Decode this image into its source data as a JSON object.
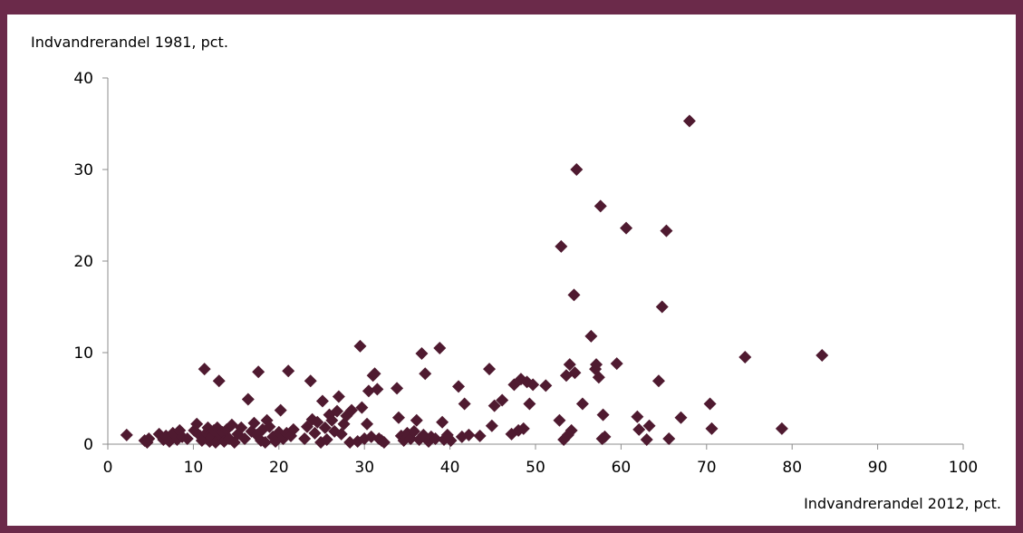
{
  "chart_data": {
    "type": "scatter",
    "title": "",
    "ylabel": "Indvandrerandel 1981, pct.",
    "xlabel": "Indvandrerandel 2012, pct.",
    "xlim": [
      0,
      100
    ],
    "ylim": [
      0,
      40
    ],
    "xticks": [
      0,
      10,
      20,
      30,
      40,
      50,
      60,
      70,
      80,
      90,
      100
    ],
    "yticks": [
      0,
      10,
      20,
      30,
      40
    ],
    "grid": false,
    "marker": "diamond",
    "marker_color": "#4f1a30",
    "points": [
      [
        2.2,
        1.0
      ],
      [
        4.3,
        0.4
      ],
      [
        4.6,
        0.2
      ],
      [
        4.8,
        0.6
      ],
      [
        6.0,
        1.1
      ],
      [
        6.5,
        0.5
      ],
      [
        6.8,
        0.9
      ],
      [
        7.2,
        0.3
      ],
      [
        7.6,
        1.2
      ],
      [
        8.1,
        0.5
      ],
      [
        8.4,
        1.5
      ],
      [
        8.7,
        0.8
      ],
      [
        9.3,
        0.6
      ],
      [
        10.1,
        1.5
      ],
      [
        10.4,
        2.2
      ],
      [
        10.8,
        0.9
      ],
      [
        11.0,
        0.4
      ],
      [
        11.3,
        8.2
      ],
      [
        11.5,
        1.2
      ],
      [
        11.7,
        1.8
      ],
      [
        11.9,
        0.3
      ],
      [
        12.1,
        0.7
      ],
      [
        12.4,
        1.5
      ],
      [
        12.6,
        0.2
      ],
      [
        12.8,
        1.8
      ],
      [
        13.0,
        6.9
      ],
      [
        13.2,
        0.9
      ],
      [
        13.4,
        1.3
      ],
      [
        13.6,
        0.3
      ],
      [
        13.9,
        1.6
      ],
      [
        14.2,
        0.6
      ],
      [
        14.5,
        2.1
      ],
      [
        14.8,
        0.2
      ],
      [
        15.2,
        1.1
      ],
      [
        15.6,
        1.8
      ],
      [
        16.0,
        0.6
      ],
      [
        16.4,
        4.9
      ],
      [
        16.8,
        1.4
      ],
      [
        17.1,
        2.3
      ],
      [
        17.4,
        1.0
      ],
      [
        17.6,
        7.9
      ],
      [
        17.9,
        0.4
      ],
      [
        18.1,
        1.6
      ],
      [
        18.4,
        0.2
      ],
      [
        18.6,
        2.6
      ],
      [
        18.9,
        1.9
      ],
      [
        19.3,
        0.8
      ],
      [
        19.6,
        0.3
      ],
      [
        20.0,
        1.3
      ],
      [
        20.2,
        3.7
      ],
      [
        20.5,
        0.6
      ],
      [
        20.9,
        1.2
      ],
      [
        21.1,
        8.0
      ],
      [
        21.4,
        0.9
      ],
      [
        21.7,
        1.6
      ],
      [
        23.0,
        0.6
      ],
      [
        23.3,
        1.9
      ],
      [
        23.7,
        6.9
      ],
      [
        23.9,
        2.7
      ],
      [
        24.2,
        1.2
      ],
      [
        24.5,
        2.4
      ],
      [
        24.9,
        0.2
      ],
      [
        25.1,
        4.7
      ],
      [
        25.4,
        1.8
      ],
      [
        25.6,
        0.5
      ],
      [
        25.9,
        3.2
      ],
      [
        26.2,
        2.6
      ],
      [
        26.5,
        1.4
      ],
      [
        26.8,
        3.6
      ],
      [
        27.0,
        5.2
      ],
      [
        27.3,
        1.1
      ],
      [
        27.6,
        2.2
      ],
      [
        27.9,
        3.1
      ],
      [
        28.3,
        0.2
      ],
      [
        28.5,
        3.7
      ],
      [
        29.2,
        0.3
      ],
      [
        29.5,
        10.7
      ],
      [
        29.7,
        4.0
      ],
      [
        30.0,
        0.6
      ],
      [
        30.3,
        2.2
      ],
      [
        30.5,
        5.8
      ],
      [
        30.8,
        0.8
      ],
      [
        31.0,
        7.5
      ],
      [
        31.2,
        7.7
      ],
      [
        31.5,
        6.0
      ],
      [
        31.7,
        0.6
      ],
      [
        32.0,
        0.4
      ],
      [
        32.3,
        0.2
      ],
      [
        33.8,
        6.1
      ],
      [
        34.0,
        2.9
      ],
      [
        34.3,
        0.9
      ],
      [
        34.6,
        0.4
      ],
      [
        35.0,
        1.2
      ],
      [
        35.4,
        0.6
      ],
      [
        35.8,
        1.4
      ],
      [
        36.1,
        2.6
      ],
      [
        36.4,
        0.5
      ],
      [
        36.7,
        9.9
      ],
      [
        36.9,
        1.0
      ],
      [
        37.1,
        7.7
      ],
      [
        37.5,
        0.3
      ],
      [
        37.8,
        0.8
      ],
      [
        38.3,
        0.6
      ],
      [
        38.8,
        10.5
      ],
      [
        39.1,
        2.4
      ],
      [
        39.3,
        0.5
      ],
      [
        39.7,
        1.0
      ],
      [
        40.1,
        0.4
      ],
      [
        41.0,
        6.3
      ],
      [
        41.4,
        0.8
      ],
      [
        41.7,
        4.4
      ],
      [
        42.2,
        1.0
      ],
      [
        43.5,
        0.9
      ],
      [
        44.6,
        8.2
      ],
      [
        44.9,
        2.0
      ],
      [
        45.2,
        4.2
      ],
      [
        46.1,
        4.8
      ],
      [
        47.2,
        1.1
      ],
      [
        47.5,
        6.5
      ],
      [
        48.0,
        1.5
      ],
      [
        48.3,
        7.1
      ],
      [
        48.6,
        1.7
      ],
      [
        49.0,
        6.8
      ],
      [
        49.3,
        4.4
      ],
      [
        49.7,
        6.5
      ],
      [
        51.2,
        6.4
      ],
      [
        52.8,
        2.6
      ],
      [
        53.0,
        21.6
      ],
      [
        53.3,
        0.5
      ],
      [
        53.6,
        7.5
      ],
      [
        53.8,
        1.0
      ],
      [
        54.0,
        8.7
      ],
      [
        54.2,
        1.5
      ],
      [
        54.5,
        16.3
      ],
      [
        54.8,
        30.0
      ],
      [
        54.6,
        7.8
      ],
      [
        55.5,
        4.4
      ],
      [
        56.5,
        11.8
      ],
      [
        57.0,
        8.2
      ],
      [
        57.1,
        8.7
      ],
      [
        57.4,
        7.3
      ],
      [
        57.6,
        26.0
      ],
      [
        57.9,
        3.2
      ],
      [
        58.1,
        0.8
      ],
      [
        57.8,
        0.6
      ],
      [
        59.5,
        8.8
      ],
      [
        60.6,
        23.6
      ],
      [
        61.9,
        3.0
      ],
      [
        62.1,
        1.6
      ],
      [
        63.0,
        0.5
      ],
      [
        63.3,
        2.0
      ],
      [
        64.4,
        6.9
      ],
      [
        64.8,
        15.0
      ],
      [
        65.3,
        23.3
      ],
      [
        65.6,
        0.6
      ],
      [
        67.0,
        2.9
      ],
      [
        68.0,
        35.3
      ],
      [
        70.4,
        4.4
      ],
      [
        70.6,
        1.7
      ],
      [
        74.5,
        9.5
      ],
      [
        78.8,
        1.7
      ],
      [
        83.5,
        9.7
      ]
    ]
  }
}
